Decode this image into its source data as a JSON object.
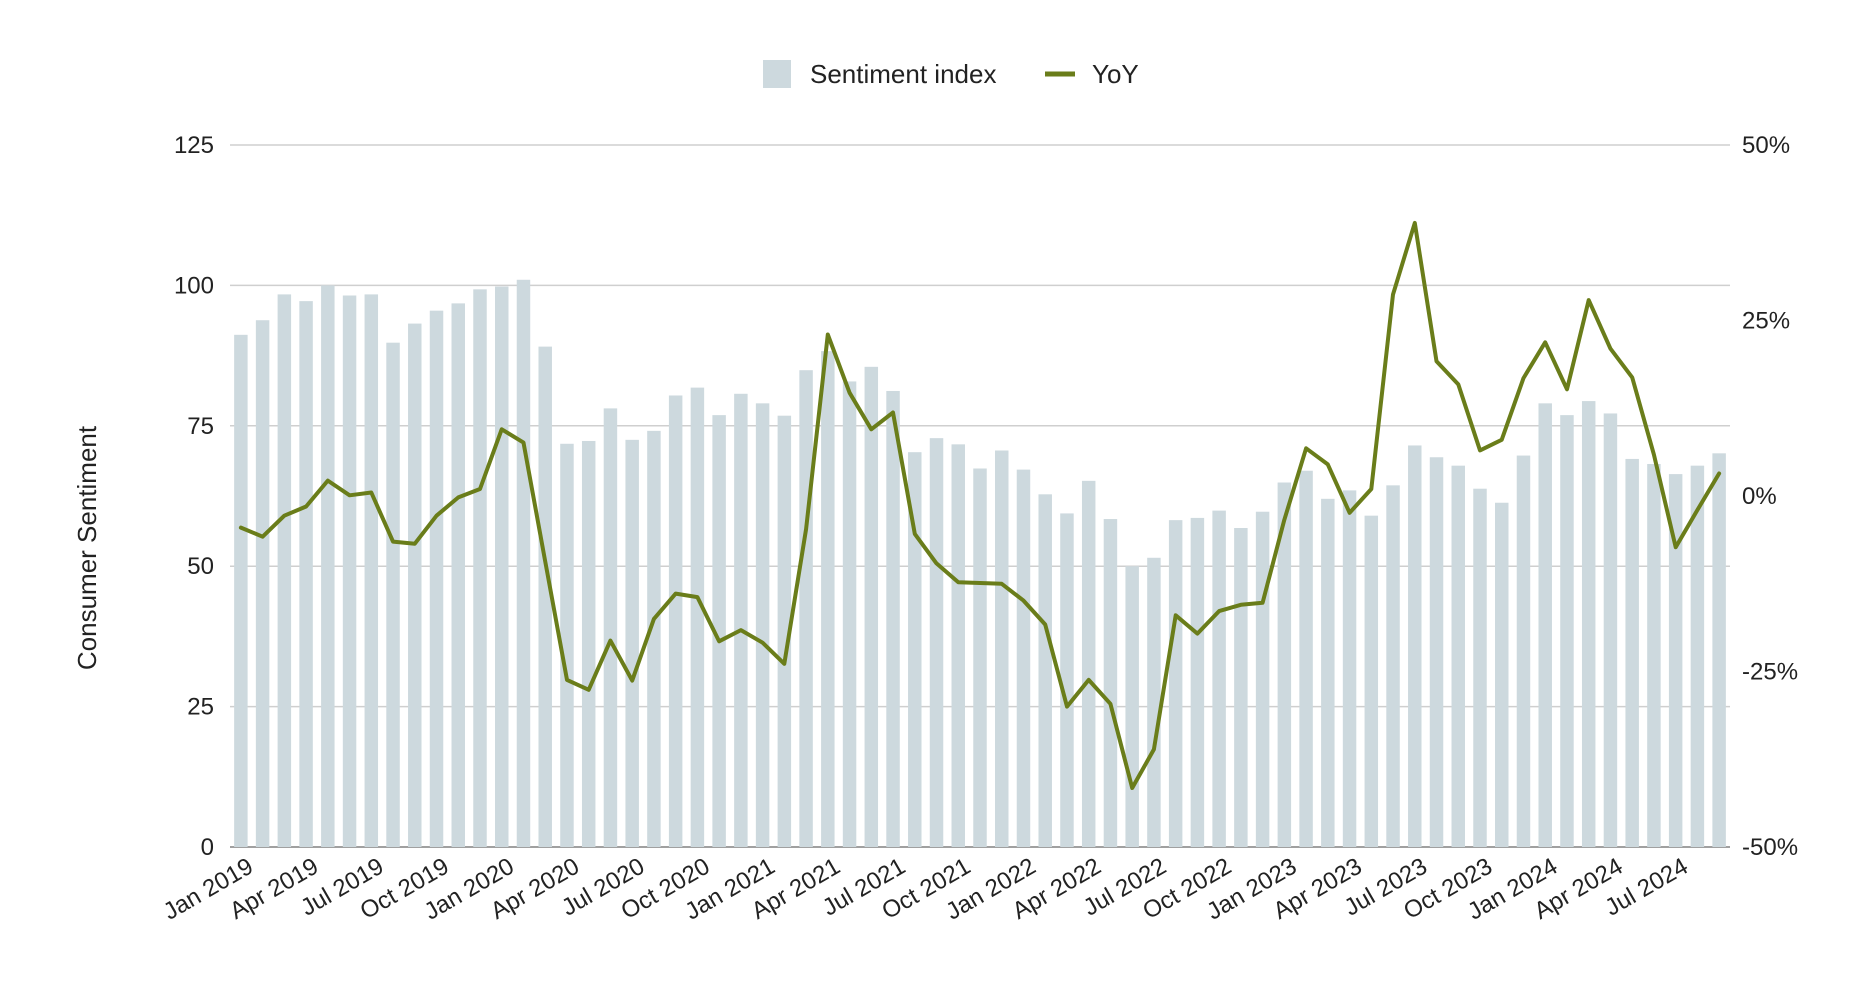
{
  "chart_data": {
    "type": "bar+line",
    "title": "",
    "ylabel": "Consumer Sentiment",
    "y2label": "",
    "ylim": [
      0,
      125
    ],
    "yticks": [
      0,
      25,
      50,
      75,
      100,
      125
    ],
    "y2lim": [
      -50,
      50
    ],
    "y2ticks": [
      "-50%",
      "-25%",
      "0%",
      "25%",
      "50%"
    ],
    "grid": true,
    "legend_position": "top-center",
    "colors": {
      "bar": "#cdd9de",
      "line": "#6a7d1a",
      "grid": "#cfcfcf"
    },
    "x_tick_labels": [
      "Jan 2019",
      "Apr 2019",
      "Jul 2019",
      "Oct 2019",
      "Jan 2020",
      "Apr 2020",
      "Jul 2020",
      "Oct 2020",
      "Jan 2021",
      "Apr 2021",
      "Jul 2021",
      "Oct 2021",
      "Jan 2022",
      "Apr 2022",
      "Jul 2022",
      "Oct 2022",
      "Jan 2023",
      "Apr 2023",
      "Jul 2023",
      "Oct 2023",
      "Jan 2024",
      "Apr 2024",
      "Jul 2024"
    ],
    "months": [
      "Jan 2019",
      "Feb 2019",
      "Mar 2019",
      "Apr 2019",
      "May 2019",
      "Jun 2019",
      "Jul 2019",
      "Aug 2019",
      "Sep 2019",
      "Oct 2019",
      "Nov 2019",
      "Dec 2019",
      "Jan 2020",
      "Feb 2020",
      "Mar 2020",
      "Apr 2020",
      "May 2020",
      "Jun 2020",
      "Jul 2020",
      "Aug 2020",
      "Sep 2020",
      "Oct 2020",
      "Nov 2020",
      "Dec 2020",
      "Jan 2021",
      "Feb 2021",
      "Mar 2021",
      "Apr 2021",
      "May 2021",
      "Jun 2021",
      "Jul 2021",
      "Aug 2021",
      "Sep 2021",
      "Oct 2021",
      "Nov 2021",
      "Dec 2021",
      "Jan 2022",
      "Feb 2022",
      "Mar 2022",
      "Apr 2022",
      "May 2022",
      "Jun 2022",
      "Jul 2022",
      "Aug 2022",
      "Sep 2022",
      "Oct 2022",
      "Nov 2022",
      "Dec 2022",
      "Jan 2023",
      "Feb 2023",
      "Mar 2023",
      "Apr 2023",
      "May 2023",
      "Jun 2023",
      "Jul 2023",
      "Aug 2023",
      "Sep 2023",
      "Oct 2023",
      "Nov 2023",
      "Dec 2023",
      "Jan 2024",
      "Feb 2024",
      "Mar 2024",
      "Apr 2024",
      "May 2024",
      "Jun 2024",
      "Jul 2024",
      "Aug 2024",
      "Sep 2024"
    ],
    "series": [
      {
        "name": "Sentiment index",
        "type": "bar",
        "axis": "left",
        "values": [
          91.2,
          93.8,
          98.4,
          97.2,
          100.0,
          98.2,
          98.4,
          89.8,
          93.2,
          95.5,
          96.8,
          99.3,
          99.8,
          101.0,
          89.1,
          71.8,
          72.3,
          78.1,
          72.5,
          74.1,
          80.4,
          81.8,
          76.9,
          80.7,
          79.0,
          76.8,
          84.9,
          88.3,
          82.9,
          85.5,
          81.2,
          70.3,
          72.8,
          71.7,
          67.4,
          70.6,
          67.2,
          62.8,
          59.4,
          65.2,
          58.4,
          50.0,
          51.5,
          58.2,
          58.6,
          59.9,
          56.8,
          59.7,
          64.9,
          67.0,
          62.0,
          63.5,
          59.0,
          64.4,
          71.5,
          69.4,
          67.9,
          63.8,
          61.3,
          69.7,
          79.0,
          76.9,
          79.4,
          77.2,
          69.1,
          68.2,
          66.4,
          67.9,
          70.1
        ]
      },
      {
        "name": "YoY",
        "type": "line",
        "axis": "right",
        "unit": "%",
        "values": [
          -4.5,
          -5.8,
          -2.8,
          -1.5,
          2.2,
          0.1,
          0.5,
          -6.5,
          -6.8,
          -2.8,
          -0.2,
          1.0,
          9.5,
          7.6,
          -9.3,
          -26.2,
          -27.6,
          -20.6,
          -26.3,
          -17.5,
          -13.9,
          -14.4,
          -20.7,
          -19.1,
          -20.9,
          -23.9,
          -4.7,
          23.0,
          14.7,
          9.5,
          11.9,
          -5.4,
          -9.6,
          -12.3,
          -12.4,
          -12.5,
          -14.9,
          -18.3,
          -30.0,
          -26.2,
          -29.6,
          -41.6,
          -36.1,
          -17.0,
          -19.6,
          -16.4,
          -15.5,
          -15.2,
          -3.4,
          6.8,
          4.5,
          -2.4,
          1.0,
          28.7,
          38.9,
          19.2,
          15.9,
          6.5,
          8.0,
          16.8,
          21.9,
          15.2,
          27.9,
          21.0,
          16.9,
          5.9,
          -7.3,
          -2.0,
          3.2
        ]
      }
    ]
  }
}
